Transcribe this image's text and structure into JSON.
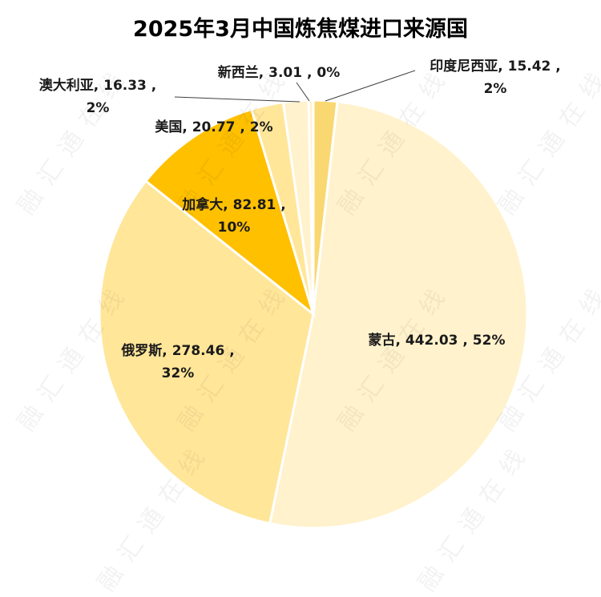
{
  "chart_data": {
    "type": "pie",
    "title": "2025年3月中国炼焦煤进口来源国",
    "unit": "",
    "slices": [
      {
        "name": "印度尼西亚",
        "value": 15.42,
        "percent": "2%",
        "color": "#f9d872",
        "label": [
          "印度尼西亚, 15.42 ,",
          "2%"
        ]
      },
      {
        "name": "蒙古",
        "value": 442.03,
        "percent": "52%",
        "color": "#fff2cc",
        "label": [
          "蒙古, 442.03 , 52%"
        ]
      },
      {
        "name": "俄罗斯",
        "value": 278.46,
        "percent": "32%",
        "color": "#ffe699",
        "label": [
          "俄罗斯, 278.46 ,",
          "32%"
        ]
      },
      {
        "name": "加拿大",
        "value": 82.81,
        "percent": "10%",
        "color": "#ffc000",
        "label": [
          "加拿大, 82.81 ,",
          "10%"
        ]
      },
      {
        "name": "美国",
        "value": 20.77,
        "percent": "2%",
        "color": "#ffe699",
        "label": [
          "美国, 20.77 , 2%"
        ]
      },
      {
        "name": "澳大利亚",
        "value": 16.33,
        "percent": "2%",
        "color": "#fff2cc",
        "label": [
          "澳大利亚, 16.33 ,",
          "2%"
        ]
      },
      {
        "name": "新西兰",
        "value": 3.01,
        "percent": "0%",
        "color": "#fff2cc",
        "label": [
          "新西兰, 3.01 , 0%"
        ]
      }
    ]
  },
  "watermark": "融汇通在线"
}
